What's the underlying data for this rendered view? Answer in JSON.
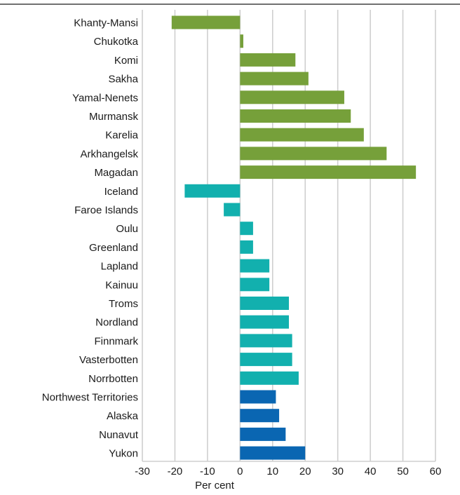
{
  "chart_data": {
    "type": "bar",
    "orientation": "horizontal",
    "xlabel": "Per cent",
    "xlim": [
      -30,
      60
    ],
    "xticks": [
      -30,
      -20,
      -10,
      0,
      10,
      20,
      30,
      40,
      50,
      60
    ],
    "grid": true,
    "group_colors": {
      "russia": "#76a03a",
      "nordic": "#12b0ae",
      "north_america": "#0a66b2"
    },
    "bars": [
      {
        "label": "Khanty-Mansi",
        "value": -21,
        "group": "russia"
      },
      {
        "label": "Chukotka",
        "value": 1,
        "group": "russia"
      },
      {
        "label": "Komi",
        "value": 17,
        "group": "russia"
      },
      {
        "label": "Sakha",
        "value": 21,
        "group": "russia"
      },
      {
        "label": "Yamal-Nenets",
        "value": 32,
        "group": "russia"
      },
      {
        "label": "Murmansk",
        "value": 34,
        "group": "russia"
      },
      {
        "label": "Karelia",
        "value": 38,
        "group": "russia"
      },
      {
        "label": "Arkhangelsk",
        "value": 45,
        "group": "russia"
      },
      {
        "label": "Magadan",
        "value": 54,
        "group": "russia"
      },
      {
        "label": "Iceland",
        "value": -17,
        "group": "nordic"
      },
      {
        "label": "Faroe Islands",
        "value": -5,
        "group": "nordic"
      },
      {
        "label": "Oulu",
        "value": 4,
        "group": "nordic"
      },
      {
        "label": "Greenland",
        "value": 4,
        "group": "nordic"
      },
      {
        "label": "Lapland",
        "value": 9,
        "group": "nordic"
      },
      {
        "label": "Kainuu",
        "value": 9,
        "group": "nordic"
      },
      {
        "label": "Troms",
        "value": 15,
        "group": "nordic"
      },
      {
        "label": "Nordland",
        "value": 15,
        "group": "nordic"
      },
      {
        "label": "Finnmark",
        "value": 16,
        "group": "nordic"
      },
      {
        "label": "Vasterbotten",
        "value": 16,
        "group": "nordic"
      },
      {
        "label": "Norrbotten",
        "value": 18,
        "group": "nordic"
      },
      {
        "label": "Northwest Territories",
        "value": 11,
        "group": "north_america"
      },
      {
        "label": "Alaska",
        "value": 12,
        "group": "north_america"
      },
      {
        "label": "Nunavut",
        "value": 14,
        "group": "north_america"
      },
      {
        "label": "Yukon",
        "value": 20,
        "group": "north_america"
      }
    ]
  }
}
